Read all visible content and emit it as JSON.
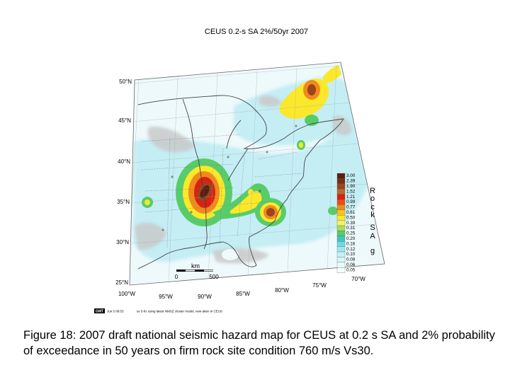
{
  "map": {
    "title": "CEUS 0.2-s SA 2%/50yr 2007",
    "lat_labels": [
      "50°N",
      "45°N",
      "40°N",
      "35°N",
      "30°N",
      "25°N"
    ],
    "lon_labels": [
      "100°W",
      "95°W",
      "90°W",
      "85°W",
      "80°W",
      "75°W",
      "70°W"
    ],
    "scale_bar": {
      "unit": "km",
      "start": "0",
      "end": "500"
    },
    "legend": {
      "values": [
        "3.00",
        "2.39",
        "1.90",
        "1.52",
        "1.21",
        "0.99",
        "0.77",
        "0.61",
        "0.50",
        "0.39",
        "0.31",
        "0.25",
        "0.20",
        "0.16",
        "0.12",
        "0.10",
        "0.08",
        "0.06",
        "0.05"
      ],
      "colors": [
        "#5a1e0e",
        "#7a2e12",
        "#9a4420",
        "#b9672f",
        "#dd1f10",
        "#ee4a18",
        "#f08a1c",
        "#f6c21e",
        "#fbe82a",
        "#f3f26e",
        "#a6e05a",
        "#58cc6a",
        "#3fc6c0",
        "#6fd8e8",
        "#9fe8f2",
        "#c2f2f6",
        "#d8f6f8",
        "#e8fafb",
        "#f4fdfd"
      ],
      "axis_label": [
        "R",
        "o",
        "c",
        "k",
        "S",
        "A",
        "g"
      ]
    },
    "gmt_stamp": {
      "logo": "GMT",
      "date": "Jun  5 08:53",
      "note": "ss 5-hz using latest NMSZ cluster model, new atten in CEUS"
    }
  },
  "caption": "Figure 18: 2007 draft national seismic hazard map for CEUS at 0.2 s SA and 2% probability of exceedance in 50 years on firm rock site condition 760 m/s Vs30.",
  "colors": {
    "background": "#ffffff",
    "map_fill": "#eef9fb",
    "low_hazard": "#c4eef4",
    "gray_zone": "#c9c9c9",
    "border": "#444444"
  }
}
